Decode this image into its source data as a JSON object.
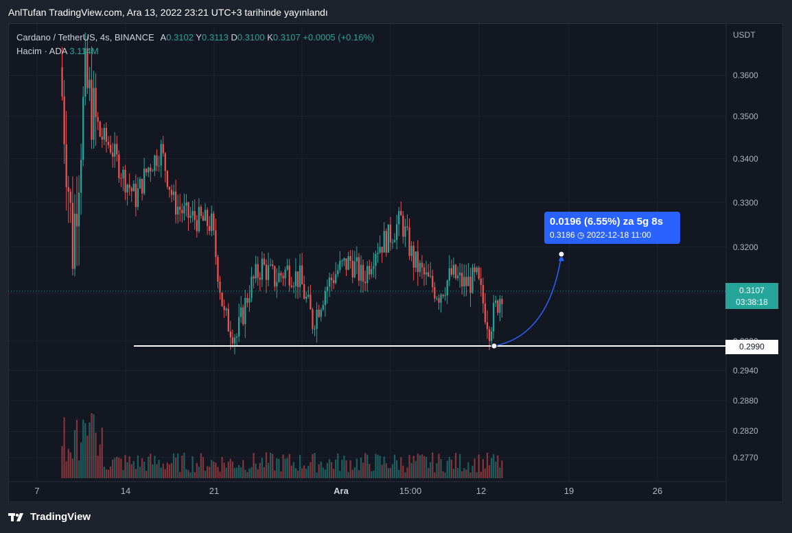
{
  "header": "AnlTufan TradingView.com, Ara 13, 2022 23:21 UTC+3 tarihinde yayınlandı",
  "legend": {
    "symbol": "Cardano / TetherUS, 4s, BINANCE",
    "open_label": "A",
    "open": "0.3102",
    "high_label": "Y",
    "high": "0.3113",
    "low_label": "D",
    "low": "0.3100",
    "close_label": "K",
    "close": "0.3107",
    "change": "+0.0005 (+0.16%)",
    "volume_label": "Hacim · ADA",
    "volume": "3.114M"
  },
  "footer": {
    "brand": "TradingView"
  },
  "axis": {
    "currency": "USDT",
    "tick_labels": [
      "0.3600",
      "0.3500",
      "0.3400",
      "0.3300",
      "0.3200",
      "0.2990",
      "0.2940",
      "0.2880",
      "0.2820",
      "0.2770"
    ],
    "x_labels": [
      "7",
      "14",
      "21",
      "Ara",
      "15:00",
      "12",
      "19",
      "26"
    ]
  },
  "current_price": {
    "price": "0.3107",
    "countdown": "03:38:18"
  },
  "horizontal_line": {
    "price": "0.2990"
  },
  "projection": {
    "line1": "0.0196 (6.55%) za 5g 8s",
    "target_price": "0.3186",
    "target_time": "2022-12-18  11:00"
  },
  "colors": {
    "up": "#26a69a",
    "down": "#ef5350",
    "accent": "#2962ff",
    "background": "#131722"
  },
  "chart_data": {
    "type": "candlestick",
    "y_unit": "USDT",
    "scale": "logarithmic",
    "ylim": [
      0.2745,
      0.3689
    ],
    "x_ticks": [
      "7",
      "14",
      "21",
      "Ara",
      "15:00",
      "12",
      "19",
      "26"
    ],
    "approx_close_path": [
      {
        "x": "Kas 8",
        "close": 0.362
      },
      {
        "x": "Kas 9",
        "close": 0.32
      },
      {
        "x": "Kas 10",
        "close": 0.358
      },
      {
        "x": "Kas 11",
        "close": 0.346
      },
      {
        "x": "Kas 12",
        "close": 0.343
      },
      {
        "x": "Kas 13",
        "close": 0.336
      },
      {
        "x": "Kas 14",
        "close": 0.331
      },
      {
        "x": "Kas 15",
        "close": 0.338
      },
      {
        "x": "Kas 16",
        "close": 0.342
      },
      {
        "x": "Kas 17",
        "close": 0.33
      },
      {
        "x": "Kas 18",
        "close": 0.327
      },
      {
        "x": "Kas 19",
        "close": 0.326
      },
      {
        "x": "Kas 20",
        "close": 0.325
      },
      {
        "x": "Kas 21",
        "close": 0.305
      },
      {
        "x": "Kas 22",
        "close": 0.301
      },
      {
        "x": "Kas 23",
        "close": 0.311
      },
      {
        "x": "Kas 24",
        "close": 0.316
      },
      {
        "x": "Kas 25",
        "close": 0.313
      },
      {
        "x": "Kas 26",
        "close": 0.315
      },
      {
        "x": "Kas 27",
        "close": 0.313
      },
      {
        "x": "Kas 28",
        "close": 0.304
      },
      {
        "x": "Kas 29",
        "close": 0.311
      },
      {
        "x": "Kas 30",
        "close": 0.315
      },
      {
        "x": "Ara 1",
        "close": 0.317
      },
      {
        "x": "Ara 2",
        "close": 0.313
      },
      {
        "x": "Ara 3",
        "close": 0.32
      },
      {
        "x": "Ara 4",
        "close": 0.322
      },
      {
        "x": "Ara 5",
        "close": 0.326
      },
      {
        "x": "Ara 6",
        "close": 0.317
      },
      {
        "x": "Ara 7",
        "close": 0.313
      },
      {
        "x": "Ara 8",
        "close": 0.31
      },
      {
        "x": "Ara 9",
        "close": 0.314
      },
      {
        "x": "Ara 10",
        "close": 0.312
      },
      {
        "x": "Ara 11",
        "close": 0.313
      },
      {
        "x": "Ara 12",
        "close": 0.303
      },
      {
        "x": "Ara 13",
        "close": 0.3107
      }
    ]
  }
}
